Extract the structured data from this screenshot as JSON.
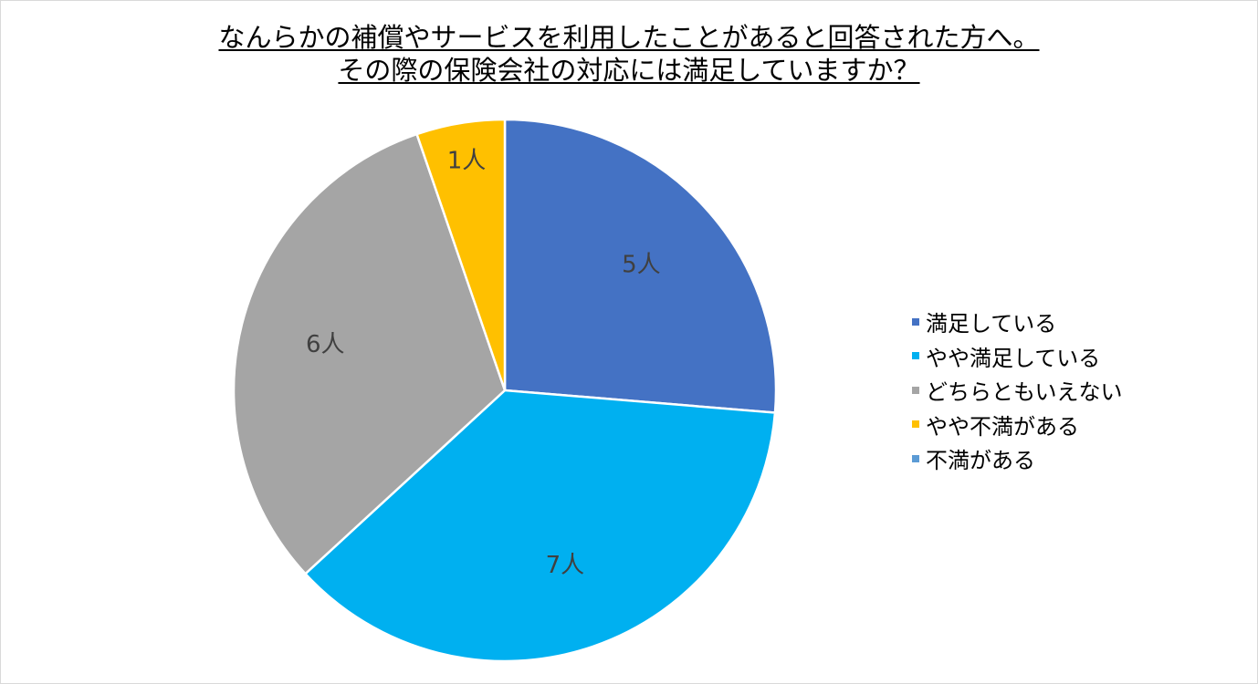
{
  "chart_data": {
    "type": "pie",
    "title_lines": [
      "なんらかの補償やサービスを利用したことがあると回答された方へ。",
      " その際の保険会社の対応には満足していますか？"
    ],
    "legend_position": "right",
    "slices": [
      {
        "label": "満足している",
        "value": 5,
        "data_label": "5人",
        "color": "#4472C4"
      },
      {
        "label": "やや満足している",
        "value": 7,
        "data_label": "7人",
        "color": "#00B0F0"
      },
      {
        "label": "どちらともいえない",
        "value": 6,
        "data_label": "6人",
        "color": "#A5A5A5"
      },
      {
        "label": "やや不満がある",
        "value": 1,
        "data_label": "1人",
        "color": "#FFC000"
      },
      {
        "label": "不満がある",
        "value": 0,
        "data_label": "",
        "color": "#5B9BD5"
      }
    ],
    "start_angle_deg": 0,
    "direction": "clockwise"
  }
}
